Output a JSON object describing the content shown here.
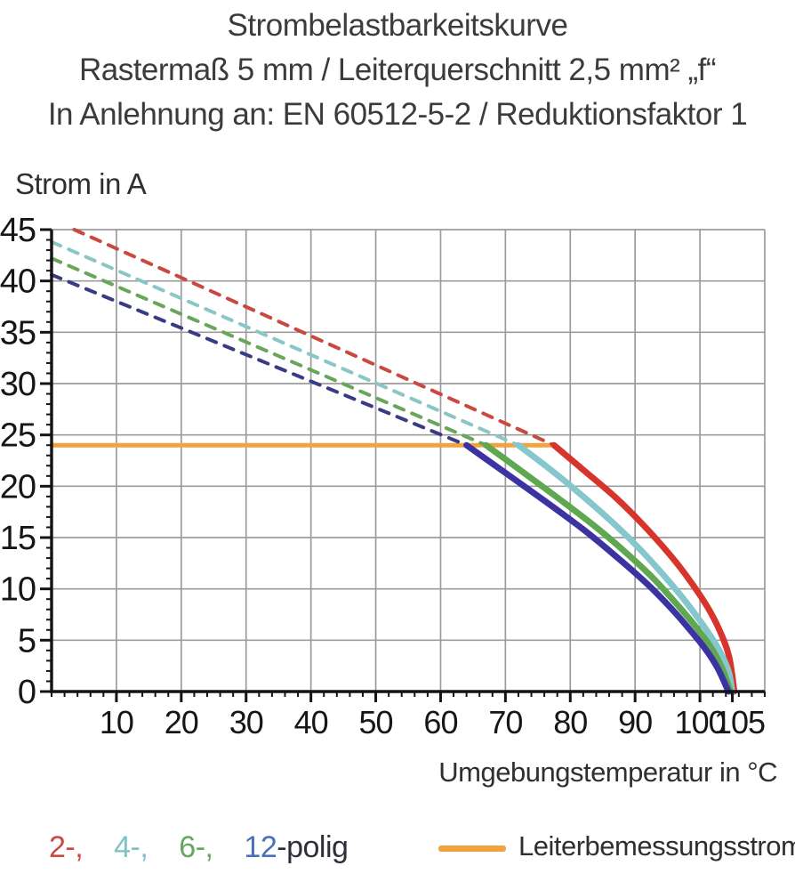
{
  "title": {
    "line1": "Strombelastbarkeitskurve",
    "line2": "Rastermaß 5 mm / Leiterquerschnitt 2,5 mm² „f“",
    "line3": "In Anlehnung an: EN 60512-5-2 / Reduktionsfaktor 1"
  },
  "chart_data": {
    "type": "line",
    "ylabel": "Strom in A",
    "xlabel": "Umgebungstemperatur in °C",
    "xlim": [
      0,
      110
    ],
    "ylim": [
      0,
      45
    ],
    "x_major_ticks": [
      10,
      20,
      30,
      40,
      50,
      60,
      70,
      80,
      90,
      100,
      105
    ],
    "y_major_ticks": [
      0,
      5,
      10,
      15,
      20,
      25,
      30,
      35,
      40,
      45
    ],
    "x_minor_step": 2,
    "y_minor_step": 1,
    "grid_x": [
      10,
      20,
      30,
      40,
      50,
      60,
      70,
      80,
      90,
      100
    ],
    "grid_y": [
      5,
      10,
      15,
      20,
      25,
      30,
      35,
      40,
      45
    ],
    "grid_color": "#9c9c9c",
    "axis_color": "#141414",
    "legend_position": "bottom",
    "series": [
      {
        "name": "Leiterbemessungsstrom",
        "style": "solid",
        "smooth": false,
        "color": "#f1a33e",
        "width": 5,
        "points": [
          [
            0,
            24
          ],
          [
            77.5,
            24
          ]
        ]
      },
      {
        "name": "2-polig derating (dashed)",
        "style": "dashed",
        "smooth": false,
        "color": "#c9483f",
        "width": 4,
        "points": [
          [
            3.5,
            45
          ],
          [
            77.5,
            24
          ]
        ]
      },
      {
        "name": "4-polig derating (dashed)",
        "style": "dashed",
        "smooth": false,
        "color": "#8bc6c6",
        "width": 4,
        "points": [
          [
            0,
            43.8
          ],
          [
            72,
            24
          ]
        ]
      },
      {
        "name": "6-polig derating (dashed)",
        "style": "dashed",
        "smooth": false,
        "color": "#68a65c",
        "width": 4,
        "points": [
          [
            0,
            42.2
          ],
          [
            67,
            24
          ]
        ]
      },
      {
        "name": "12-polig derating (dashed)",
        "style": "dashed",
        "smooth": false,
        "color": "#3a3a85",
        "width": 4,
        "points": [
          [
            0,
            40.6
          ],
          [
            64,
            24
          ]
        ]
      },
      {
        "name": "2-polig limit (solid)",
        "style": "solid",
        "smooth": true,
        "color": "#d7342b",
        "width": 7,
        "points": [
          [
            77.5,
            24
          ],
          [
            82,
            21.6
          ],
          [
            87,
            18.9
          ],
          [
            91,
            16.4
          ],
          [
            95,
            13.6
          ],
          [
            98,
            11.2
          ],
          [
            101,
            8.4
          ],
          [
            103,
            6.0
          ],
          [
            104.5,
            3.4
          ],
          [
            105.3,
            0
          ]
        ]
      },
      {
        "name": "4-polig limit (solid)",
        "style": "solid",
        "smooth": true,
        "color": "#85c7cd",
        "width": 7,
        "points": [
          [
            72,
            24
          ],
          [
            77,
            21.6
          ],
          [
            82,
            19.0
          ],
          [
            87,
            16.2
          ],
          [
            91,
            13.7
          ],
          [
            95,
            10.9
          ],
          [
            98,
            8.6
          ],
          [
            101,
            6.0
          ],
          [
            103,
            4.0
          ],
          [
            104.4,
            2.0
          ],
          [
            105.0,
            0
          ]
        ]
      },
      {
        "name": "6-polig limit (solid)",
        "style": "solid",
        "smooth": true,
        "color": "#5fa750",
        "width": 7,
        "points": [
          [
            67,
            24
          ],
          [
            72,
            21.7
          ],
          [
            78,
            18.9
          ],
          [
            84,
            16.0
          ],
          [
            89,
            13.3
          ],
          [
            93,
            10.9
          ],
          [
            97,
            8.1
          ],
          [
            100,
            5.8
          ],
          [
            102,
            4.0
          ],
          [
            103.6,
            2.0
          ],
          [
            104.7,
            0
          ]
        ]
      },
      {
        "name": "12-polig limit (solid)",
        "style": "solid",
        "smooth": true,
        "color": "#3b33a2",
        "width": 7,
        "points": [
          [
            64,
            24
          ],
          [
            70,
            21.3
          ],
          [
            76,
            18.6
          ],
          [
            82,
            15.8
          ],
          [
            87,
            13.2
          ],
          [
            92,
            10.4
          ],
          [
            96,
            7.8
          ],
          [
            99,
            5.6
          ],
          [
            101,
            4.0
          ],
          [
            102.8,
            2.2
          ],
          [
            104.4,
            0
          ]
        ]
      }
    ]
  },
  "legend": {
    "poles": [
      {
        "label": "2-,",
        "color": "#cc4841"
      },
      {
        "label": "4-,",
        "color": "#7fc2c6"
      },
      {
        "label": "6-,",
        "color": "#64a75e"
      },
      {
        "label": "12",
        "color": "#4a70b8"
      }
    ],
    "suffix": {
      "label": "-polig",
      "color": "#2f2f3a"
    },
    "rated": {
      "label": "Leiterbemessungsstrom",
      "swatch_color": "#f1a33e"
    }
  }
}
